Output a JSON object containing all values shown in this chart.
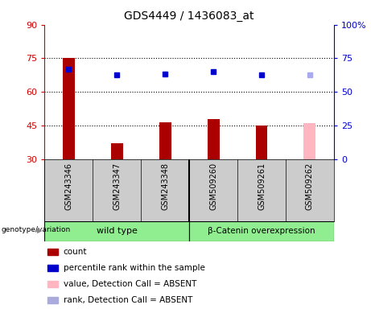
{
  "title": "GDS4449 / 1436083_at",
  "samples": [
    "GSM243346",
    "GSM243347",
    "GSM243348",
    "GSM509260",
    "GSM509261",
    "GSM509262"
  ],
  "bar_values": [
    75,
    37,
    46.5,
    48,
    45,
    46
  ],
  "bar_colors": [
    "#aa0000",
    "#aa0000",
    "#aa0000",
    "#aa0000",
    "#aa0000",
    "#ffb6c1"
  ],
  "rank_values": [
    67,
    63,
    63.5,
    65,
    63,
    62.5
  ],
  "rank_colors": [
    "#0000cc",
    "#0000cc",
    "#0000cc",
    "#0000cc",
    "#0000cc",
    "#aaaaee"
  ],
  "ylim_left": [
    30,
    90
  ],
  "ylim_right": [
    0,
    100
  ],
  "yticks_left": [
    30,
    45,
    60,
    75,
    90
  ],
  "yticks_right": [
    0,
    25,
    50,
    75,
    100
  ],
  "hlines": [
    45,
    60,
    75
  ],
  "group1_label": "wild type",
  "group2_label": "β-Catenin overexpression",
  "group_color": "#90ee90",
  "genotype_label": "genotype/variation",
  "legend": [
    {
      "label": "count",
      "color": "#aa0000"
    },
    {
      "label": "percentile rank within the sample",
      "color": "#0000cc"
    },
    {
      "label": "value, Detection Call = ABSENT",
      "color": "#ffb6c1"
    },
    {
      "label": "rank, Detection Call = ABSENT",
      "color": "#aaaadd"
    }
  ],
  "bar_width": 0.25,
  "plot_bg": "#ffffff",
  "tick_label_bg": "#cccccc"
}
